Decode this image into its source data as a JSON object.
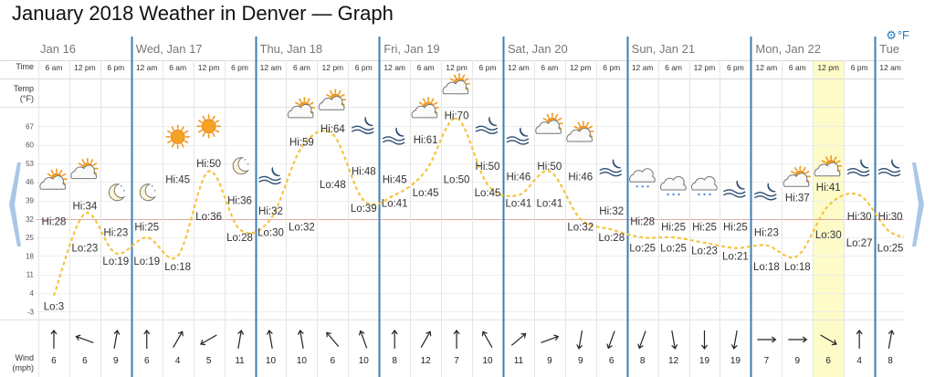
{
  "title": "January 2018 Weather in Denver — Graph",
  "unit_toggle": {
    "icon": "gear-icon",
    "label": "°F"
  },
  "row_labels": {
    "time": "Time",
    "temp_line1": "Temp",
    "temp_line2": "(°F)",
    "wind_line1": "Wind",
    "wind_line2": "(mph)"
  },
  "colors": {
    "day_line": "#3a7fb5",
    "temp_curve": "#f5c542",
    "highlight": "#fdfbc8",
    "accent": "#1b78b8",
    "nav_arrow": "#a9c7e6"
  },
  "days": [
    {
      "label": "Jan 16",
      "slots": [
        "6 am",
        "12 pm",
        "6 pm"
      ]
    },
    {
      "label": "Wed, Jan 17",
      "slots": [
        "12 am",
        "6 am",
        "12 pm",
        "6 pm"
      ]
    },
    {
      "label": "Thu, Jan 18",
      "slots": [
        "12 am",
        "6 am",
        "12 pm",
        "6 pm"
      ]
    },
    {
      "label": "Fri, Jan 19",
      "slots": [
        "12 am",
        "6 am",
        "12 pm",
        "6 pm"
      ]
    },
    {
      "label": "Sat, Jan 20",
      "slots": [
        "12 am",
        "6 am",
        "12 pm",
        "6 pm"
      ]
    },
    {
      "label": "Sun, Jan 21",
      "slots": [
        "12 am",
        "6 am",
        "12 pm",
        "6 pm"
      ]
    },
    {
      "label": "Mon, Jan 22",
      "slots": [
        "12 am",
        "6 am",
        "12 pm",
        "6 pm"
      ]
    },
    {
      "label": "Tue",
      "slots": [
        "12 am"
      ]
    }
  ],
  "highlighted_slot": 25,
  "chart_data": {
    "type": "line",
    "y_ticks": [
      67,
      60,
      53,
      46,
      39,
      32,
      25,
      18,
      11,
      4,
      -3
    ],
    "ylim": [
      -6,
      74
    ],
    "temp_curve": [
      [
        0.0,
        3
      ],
      [
        1.0,
        34
      ],
      [
        2.0,
        19
      ],
      [
        3.0,
        25
      ],
      [
        4.0,
        18
      ],
      [
        5.0,
        50
      ],
      [
        6.0,
        28
      ],
      [
        7.0,
        32
      ],
      [
        8.0,
        59
      ],
      [
        9.0,
        64
      ],
      [
        10.0,
        39
      ],
      [
        11.0,
        41
      ],
      [
        12.0,
        50
      ],
      [
        13.0,
        70
      ],
      [
        14.0,
        45
      ],
      [
        15.0,
        41
      ],
      [
        16.0,
        50
      ],
      [
        17.0,
        32
      ],
      [
        18.0,
        28
      ],
      [
        19.0,
        25
      ],
      [
        20.0,
        25
      ],
      [
        21.0,
        23
      ],
      [
        22.0,
        21
      ],
      [
        23.0,
        22
      ],
      [
        24.0,
        18
      ],
      [
        25.0,
        37
      ],
      [
        26.0,
        41
      ],
      [
        27.0,
        27
      ],
      [
        28.0,
        25
      ]
    ],
    "icons": [
      {
        "slot": 0,
        "temp": 46,
        "type": "partly-sunny"
      },
      {
        "slot": 1,
        "temp": 50,
        "type": "partly-sunny"
      },
      {
        "slot": 2,
        "temp": 42,
        "type": "moon"
      },
      {
        "slot": 3,
        "temp": 42,
        "type": "moon"
      },
      {
        "slot": 4,
        "temp": 63,
        "type": "sun"
      },
      {
        "slot": 5,
        "temp": 67,
        "type": "sun"
      },
      {
        "slot": 6,
        "temp": 52,
        "type": "moon"
      },
      {
        "slot": 7,
        "temp": 48,
        "type": "haze"
      },
      {
        "slot": 8,
        "temp": 73,
        "type": "partly-sunny"
      },
      {
        "slot": 9,
        "temp": 76,
        "type": "partly-sunny"
      },
      {
        "slot": 10,
        "temp": 67,
        "type": "haze"
      },
      {
        "slot": 11,
        "temp": 63,
        "type": "haze"
      },
      {
        "slot": 12,
        "temp": 73,
        "type": "partly-sunny"
      },
      {
        "slot": 13,
        "temp": 82,
        "type": "partly-sunny"
      },
      {
        "slot": 14,
        "temp": 67,
        "type": "haze"
      },
      {
        "slot": 15,
        "temp": 63,
        "type": "haze"
      },
      {
        "slot": 16,
        "temp": 67,
        "type": "partly-sunny"
      },
      {
        "slot": 17,
        "temp": 64,
        "type": "partly-sunny"
      },
      {
        "slot": 18,
        "temp": 51,
        "type": "haze"
      },
      {
        "slot": 19,
        "temp": 47,
        "type": "snow-cloud"
      },
      {
        "slot": 20,
        "temp": 44,
        "type": "snow-cloud"
      },
      {
        "slot": 21,
        "temp": 44,
        "type": "snow-cloud"
      },
      {
        "slot": 22,
        "temp": 43,
        "type": "haze"
      },
      {
        "slot": 23,
        "temp": 42,
        "type": "haze"
      },
      {
        "slot": 24,
        "temp": 47,
        "type": "partly-sunny"
      },
      {
        "slot": 25,
        "temp": 51,
        "type": "partly-sunny"
      },
      {
        "slot": 26,
        "temp": 51,
        "type": "haze"
      },
      {
        "slot": 27,
        "temp": 51,
        "type": "haze"
      }
    ],
    "labels": [
      {
        "slot": 0,
        "text": "Lo:3",
        "temp": -1
      },
      {
        "slot": 0,
        "text": "Hi:28",
        "temp": 31
      },
      {
        "slot": 1,
        "text": "Hi:34",
        "temp": 37
      },
      {
        "slot": 1,
        "text": "Lo:23",
        "temp": 21
      },
      {
        "slot": 2,
        "text": "Hi:23",
        "temp": 27
      },
      {
        "slot": 2,
        "text": "Lo:19",
        "temp": 16
      },
      {
        "slot": 3,
        "text": "Hi:25",
        "temp": 29
      },
      {
        "slot": 3,
        "text": "Lo:19",
        "temp": 16
      },
      {
        "slot": 4,
        "text": "Hi:45",
        "temp": 47
      },
      {
        "slot": 4,
        "text": "Lo:18",
        "temp": 14
      },
      {
        "slot": 5,
        "text": "Hi:50",
        "temp": 53
      },
      {
        "slot": 5,
        "text": "Lo:36",
        "temp": 33
      },
      {
        "slot": 6,
        "text": "Hi:36",
        "temp": 39
      },
      {
        "slot": 6,
        "text": "Lo:28",
        "temp": 25
      },
      {
        "slot": 7,
        "text": "Hi:32",
        "temp": 35
      },
      {
        "slot": 7,
        "text": "Lo:30",
        "temp": 27
      },
      {
        "slot": 8,
        "text": "Hi:59",
        "temp": 61
      },
      {
        "slot": 8,
        "text": "Lo:32",
        "temp": 29
      },
      {
        "slot": 9,
        "text": "Hi:64",
        "temp": 66
      },
      {
        "slot": 9,
        "text": "Lo:48",
        "temp": 45
      },
      {
        "slot": 10,
        "text": "Hi:48",
        "temp": 50
      },
      {
        "slot": 10,
        "text": "Lo:39",
        "temp": 36
      },
      {
        "slot": 11,
        "text": "Hi:45",
        "temp": 47
      },
      {
        "slot": 11,
        "text": "Lo:41",
        "temp": 38
      },
      {
        "slot": 12,
        "text": "Hi:61",
        "temp": 62
      },
      {
        "slot": 12,
        "text": "Lo:45",
        "temp": 42
      },
      {
        "slot": 13,
        "text": "Hi:70",
        "temp": 71
      },
      {
        "slot": 13,
        "text": "Lo:50",
        "temp": 47
      },
      {
        "slot": 14,
        "text": "Hi:50",
        "temp": 52
      },
      {
        "slot": 14,
        "text": "Lo:45",
        "temp": 42
      },
      {
        "slot": 15,
        "text": "Hi:46",
        "temp": 48
      },
      {
        "slot": 15,
        "text": "Lo:41",
        "temp": 38
      },
      {
        "slot": 16,
        "text": "Hi:50",
        "temp": 52
      },
      {
        "slot": 16,
        "text": "Lo:41",
        "temp": 38
      },
      {
        "slot": 17,
        "text": "Hi:46",
        "temp": 48
      },
      {
        "slot": 17,
        "text": "Lo:32",
        "temp": 29
      },
      {
        "slot": 18,
        "text": "Hi:32",
        "temp": 35
      },
      {
        "slot": 18,
        "text": "Lo:28",
        "temp": 25
      },
      {
        "slot": 19,
        "text": "Hi:28",
        "temp": 31
      },
      {
        "slot": 19,
        "text": "Lo:25",
        "temp": 21
      },
      {
        "slot": 20,
        "text": "Hi:25",
        "temp": 29
      },
      {
        "slot": 20,
        "text": "Lo:25",
        "temp": 21
      },
      {
        "slot": 21,
        "text": "Hi:25",
        "temp": 29
      },
      {
        "slot": 21,
        "text": "Lo:23",
        "temp": 20
      },
      {
        "slot": 22,
        "text": "Hi:25",
        "temp": 29
      },
      {
        "slot": 22,
        "text": "Lo:21",
        "temp": 18
      },
      {
        "slot": 23,
        "text": "Hi:23",
        "temp": 27
      },
      {
        "slot": 23,
        "text": "Lo:18",
        "temp": 14
      },
      {
        "slot": 24,
        "text": "Hi:37",
        "temp": 40
      },
      {
        "slot": 24,
        "text": "Lo:18",
        "temp": 14
      },
      {
        "slot": 25,
        "text": "Hi:41",
        "temp": 44
      },
      {
        "slot": 25,
        "text": "Lo:30",
        "temp": 26
      },
      {
        "slot": 26,
        "text": "Hi:30",
        "temp": 33
      },
      {
        "slot": 26,
        "text": "Lo:27",
        "temp": 23
      },
      {
        "slot": 27,
        "text": "Hi:30",
        "temp": 33
      },
      {
        "slot": 27,
        "text": "Lo:25",
        "temp": 21
      }
    ],
    "wind": [
      {
        "speed": "6",
        "dir": 0
      },
      {
        "speed": "6",
        "dir": 290
      },
      {
        "speed": "9",
        "dir": 10
      },
      {
        "speed": "6",
        "dir": 0
      },
      {
        "speed": "4",
        "dir": 30
      },
      {
        "speed": "5",
        "dir": 240
      },
      {
        "speed": "11",
        "dir": 10
      },
      {
        "speed": "10",
        "dir": 350
      },
      {
        "speed": "10",
        "dir": 350
      },
      {
        "speed": "6",
        "dir": 320
      },
      {
        "speed": "10",
        "dir": 340
      },
      {
        "speed": "8",
        "dir": 0
      },
      {
        "speed": "12",
        "dir": 30
      },
      {
        "speed": "7",
        "dir": 0
      },
      {
        "speed": "10",
        "dir": 330
      },
      {
        "speed": "11",
        "dir": 50
      },
      {
        "speed": "9",
        "dir": 70
      },
      {
        "speed": "9",
        "dir": 190
      },
      {
        "speed": "6",
        "dir": 200
      },
      {
        "speed": "8",
        "dir": 200
      },
      {
        "speed": "12",
        "dir": 170
      },
      {
        "speed": "19",
        "dir": 180
      },
      {
        "speed": "19",
        "dir": 190
      },
      {
        "speed": "7",
        "dir": 90
      },
      {
        "speed": "9",
        "dir": 90
      },
      {
        "speed": "6",
        "dir": 120
      },
      {
        "speed": "4",
        "dir": 0
      },
      {
        "speed": "8",
        "dir": 10
      }
    ]
  }
}
